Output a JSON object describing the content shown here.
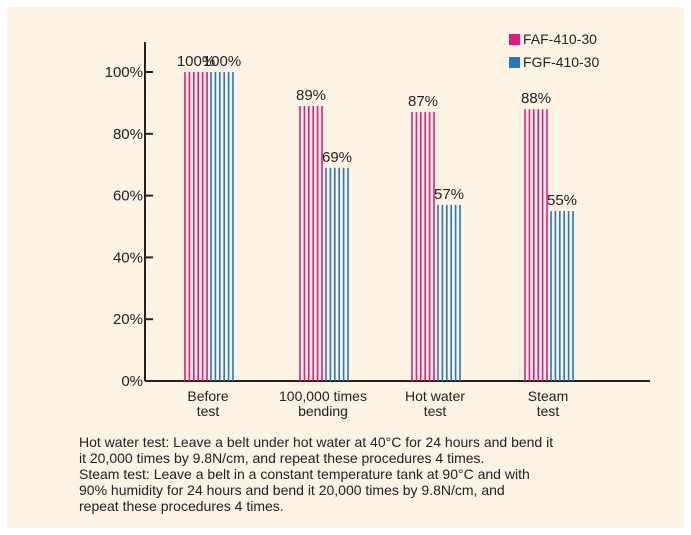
{
  "chart_data": {
    "type": "bar",
    "categories": [
      [
        "Before",
        "test"
      ],
      [
        "100,000 times",
        "bending"
      ],
      [
        "Hot water",
        "test"
      ],
      [
        "Steam",
        "test"
      ]
    ],
    "series": [
      {
        "name": "FAF-410-30",
        "color": "#e6197f",
        "values": [
          100,
          89,
          87,
          88
        ],
        "labels": [
          "100%",
          "89%",
          "87%",
          "88%"
        ]
      },
      {
        "name": "FGF-410-30",
        "color": "#1f78c8",
        "values": [
          100,
          69,
          57,
          55
        ],
        "labels": [
          "100%",
          "69%",
          "57%",
          "55%"
        ]
      }
    ],
    "ylim": [
      0,
      100
    ],
    "yticks": [
      "0%",
      "20%",
      "40%",
      "60%",
      "80%",
      "100%"
    ],
    "legend_position": "top-right",
    "bar_style": "vertical stripes"
  },
  "notes": [
    "Hot water test: Leave a belt under hot water at 40°C for 24 hours and bend it",
    "it 20,000 times by 9.8N/cm, and repeat these procedures 4 times.",
    "Steam test: Leave a belt in a constant temperature tank at 90°C and with",
    "90% humidity for 24 hours and bend it 20,000 times by 9.8N/cm, and",
    "repeat these procedures 4 times."
  ],
  "colors": {
    "background": "#fdf3e3",
    "axis": "#222222"
  }
}
